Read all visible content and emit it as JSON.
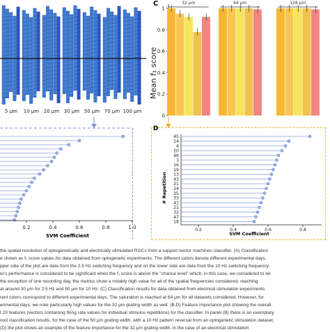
{
  "panels": {
    "c": {
      "label": "C",
      "ylabel": "Mean f₁ score",
      "yticks": [
        "1",
        "0.8",
        "0.6",
        "0.4",
        "0.2",
        "0"
      ],
      "group_labels": [
        "32 μm",
        "64 μm",
        "128 μm"
      ]
    },
    "b": {
      "xlabel": "SVM Coefficient",
      "xticks": [
        "0.2",
        "0.4",
        "0.6",
        "0.8",
        "1.0"
      ]
    },
    "d": {
      "label": "D",
      "ylabel": "# Repetition",
      "xlabel": "SVM Coefficient",
      "xticks": [
        "0.2",
        "0.4",
        "0.6",
        "0.8"
      ],
      "repetitions": [
        "45",
        "14",
        "6",
        "20",
        "46",
        "1",
        "16",
        "19",
        "13",
        "43",
        "21",
        "24",
        "35",
        "33",
        "41",
        "21",
        "32",
        "47",
        "18"
      ]
    },
    "a": {
      "grating_labels": [
        "5 μm",
        "10 μm",
        "20 μm",
        "30 μm",
        "50 μm",
        "70 μm",
        "100 μm"
      ]
    }
  },
  "chart_data": [
    {
      "type": "bar",
      "panel": "C",
      "ylabel": "Mean f₁ score",
      "ylim": [
        0,
        1
      ],
      "groups": [
        "32 μm",
        "64 μm",
        "128 μm"
      ],
      "bars_per_group": [
        [
          1.0,
          0.95,
          0.92,
          0.78,
          0.92
        ],
        [
          1.0,
          1.0,
          1.0,
          1.0,
          0.99
        ],
        [
          1.0,
          1.0,
          1.0,
          1.0,
          0.99
        ]
      ],
      "colors": [
        "#f7b733",
        "#f9c74f",
        "#f7e45d",
        "#f2c14e",
        "#f28482"
      ]
    },
    {
      "type": "scatter",
      "panel": "B",
      "xlabel": "SVM Coefficient",
      "values": [
        0.93,
        0.6,
        0.52,
        0.46,
        0.43,
        0.41,
        0.39,
        0.36,
        0.33,
        0.3,
        0.26,
        0.24,
        0.22,
        0.2,
        0.18,
        0.16,
        0.15,
        0.14,
        0.13,
        0.12,
        0.11
      ]
    },
    {
      "type": "scatter",
      "panel": "D",
      "xlabel": "SVM Coefficient",
      "ylabel": "# Repetition",
      "categories": [
        "45",
        "14",
        "6",
        "20",
        "46",
        "1",
        "16",
        "19",
        "13",
        "43",
        "21",
        "24",
        "35",
        "33",
        "41",
        "21",
        "32",
        "47",
        "18"
      ],
      "values": [
        0.84,
        0.72,
        0.7,
        0.68,
        0.66,
        0.65,
        0.64,
        0.63,
        0.62,
        0.61,
        0.6,
        0.59,
        0.58,
        0.57,
        0.56,
        0.55,
        0.54,
        0.53,
        0.52
      ]
    }
  ],
  "caption_lines": [
    "the spatial resolution of optogenetically and electrically stimulated RGCs from a support vector machines classifier. (A) Classification",
    "e shown as f₁ score values for data obtained from optogenetic experiments. The different colors denote different experimental days.",
    "pper side of the plot are data from the 2.5 Hz switching frequency and on the lower side are data from the 10 Hz switching frequency.",
    "er's performance is considered to be significant when the f₁ score is above the \"chance level\" which, in this case, we considered to be",
    "the exception of one recording day, the metrics show a notably high value for all of the spatial frequencies considered, reaching",
    "at around 30 μm for 2.5 Hz and 50 μm for 10 Hz. (C) Classification results for data obtained from electrical stimulation experiments.",
    "rent colors correspond to different experimental days. The saturation is reached at 64 μm for all datasets considered. However, for",
    "erimental days, we note particularly high values for the 32 μm grating width as well. (B,D) Feature importance plot showing the overall",
    "t 20 features (vectors containing firing rate values for individual stimulus repetitions) for the classifier. In panel (B) there is an exemplary",
    "ood classification results, for the case of the 50 μm grating width, with a 10 Hz pattern reversal from an optogenetic stimulation dataset,",
    "(D) the plot shows an example of the feature importance for the 32 μm grating width, in the case of an electrical stimulation"
  ]
}
